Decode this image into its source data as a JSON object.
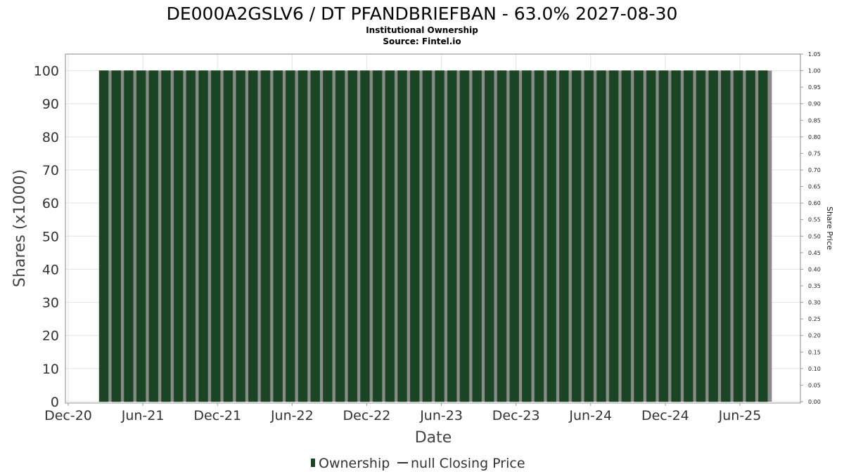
{
  "chart_data": {
    "type": "bar",
    "title": "DE000A2GSLV6 / DT PFANDBRIEFBAN - 63.0% 2027-08-30",
    "subtitle": "Institutional Ownership",
    "source": "Source: Fintel.io",
    "xlabel": "Date",
    "ylabel": "Shares (x1000)",
    "y2label": "Share Price",
    "ylim": [
      0,
      105
    ],
    "y2lim": [
      0,
      1.05
    ],
    "yticks": [
      "0",
      "10",
      "20",
      "30",
      "40",
      "50",
      "60",
      "70",
      "80",
      "90",
      "100"
    ],
    "y2ticks": [
      "0.00",
      "0.05",
      "0.10",
      "0.15",
      "0.20",
      "0.25",
      "0.30",
      "0.35",
      "0.40",
      "0.45",
      "0.50",
      "0.55",
      "0.60",
      "0.65",
      "0.70",
      "0.75",
      "0.80",
      "0.85",
      "0.90",
      "0.95",
      "1.00",
      "1.05"
    ],
    "xticks": [
      "Dec-20",
      "Jun-21",
      "Dec-21",
      "Jun-22",
      "Dec-22",
      "Jun-23",
      "Dec-23",
      "Jun-24",
      "Dec-24",
      "Jun-25"
    ],
    "grid": true,
    "legend_position": "bottom",
    "series": [
      {
        "name": "Ownership",
        "color": "#1a4423",
        "start_month": "2021-03",
        "values": [
          100,
          100,
          100,
          100,
          100,
          100,
          100,
          100,
          100,
          100,
          100,
          100,
          100,
          100,
          100,
          100,
          100,
          100,
          100,
          100,
          100,
          100,
          100,
          100,
          100,
          100,
          100,
          100,
          100,
          100,
          100,
          100,
          100,
          100,
          100,
          100,
          100,
          100,
          100,
          100,
          100,
          100,
          100,
          100,
          100,
          100,
          100,
          100,
          100,
          100,
          100,
          100,
          100,
          100
        ]
      },
      {
        "name": "null Closing Price",
        "color": "#333333",
        "values": []
      }
    ],
    "legend": [
      "Ownership",
      "null Closing Price"
    ]
  }
}
